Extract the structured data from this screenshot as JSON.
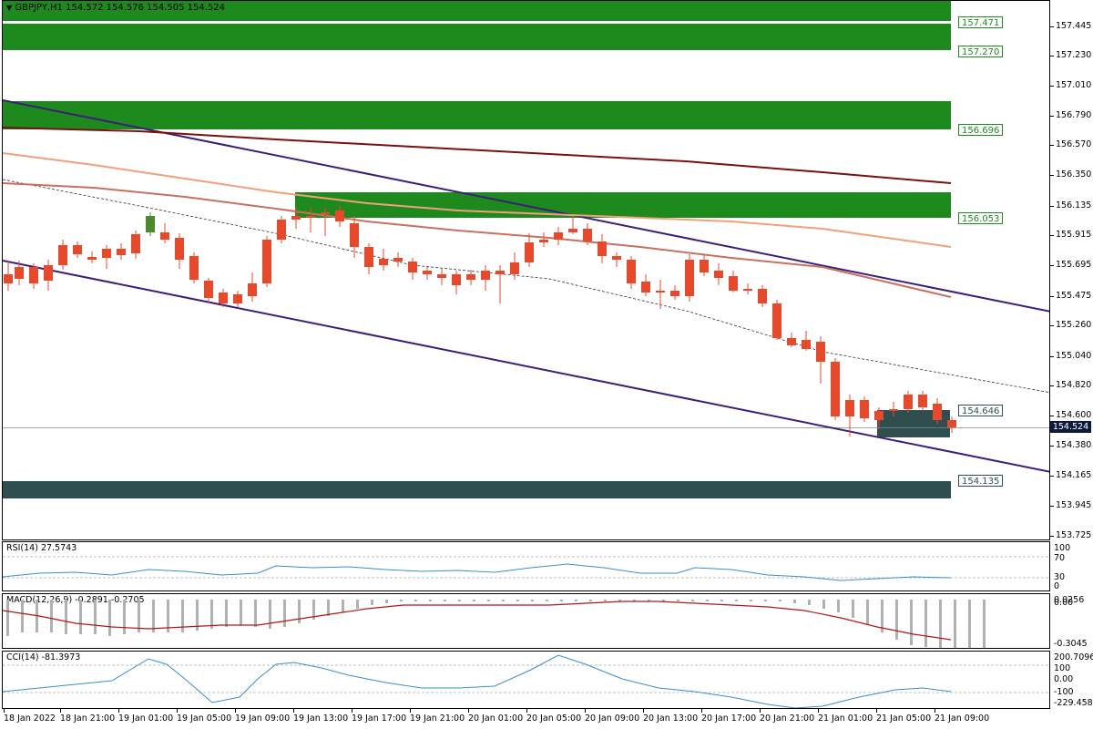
{
  "chart": {
    "title": "GBPJPY,H1  154.572 154.576 154.505 154.524",
    "menu_icon": "triangle-down-icon",
    "current_price": "154.524",
    "price_axis": [
      "157.445",
      "157.230",
      "157.010",
      "156.790",
      "156.570",
      "156.350",
      "156.135",
      "155.915",
      "155.695",
      "155.475",
      "155.260",
      "155.040",
      "154.820",
      "154.600",
      "154.380",
      "154.165",
      "153.945",
      "153.725"
    ],
    "zones": [
      {
        "label": "157.471",
        "color": "#1e8a1e"
      },
      {
        "label": "157.270",
        "color": "#1e8a1e"
      },
      {
        "label": "156.696",
        "color": "#1e8a1e"
      },
      {
        "label": "156.053",
        "color": "#1e8a1e"
      },
      {
        "label": "154.646",
        "color": "#2f4f4f"
      },
      {
        "label": "154.135",
        "color": "#2f4f4f"
      }
    ],
    "time_axis": [
      "18 Jan 2022",
      "18 Jan 21:00",
      "19 Jan 01:00",
      "19 Jan 05:00",
      "19 Jan 09:00",
      "19 Jan 13:00",
      "19 Jan 17:00",
      "19 Jan 21:00",
      "20 Jan 01:00",
      "20 Jan 05:00",
      "20 Jan 09:00",
      "20 Jan 13:00",
      "20 Jan 17:00",
      "20 Jan 21:00",
      "21 Jan 01:00",
      "21 Jan 05:00",
      "21 Jan 09:00"
    ],
    "colors": {
      "bull": "#4a8a2a",
      "bear": "#e8492a",
      "zone_green": "#1e8a1e",
      "zone_dark": "#2f4f4f",
      "channel": "#3b1e7a",
      "ma_slow": "#7a1010",
      "ma_mid": "#f0a07a",
      "ma_fast": "#c87060"
    }
  },
  "rsi": {
    "title": "RSI(14) 27.5743",
    "levels": [
      "100",
      "70",
      "30",
      "0"
    ],
    "color": "#3a8fc8"
  },
  "macd": {
    "title": "MACD(12,26,9) -0.2891 -0.2705",
    "levels": [
      "0.0256",
      "0.00",
      "-0.3045"
    ],
    "hist_color": "#b0b0b0",
    "signal_color": "#b01818"
  },
  "cci": {
    "title": "CCI(14) -81.3973",
    "levels": [
      "200.7096",
      "100",
      "0.00",
      "-100",
      "-229.4585"
    ],
    "color": "#3a8fc8"
  }
}
